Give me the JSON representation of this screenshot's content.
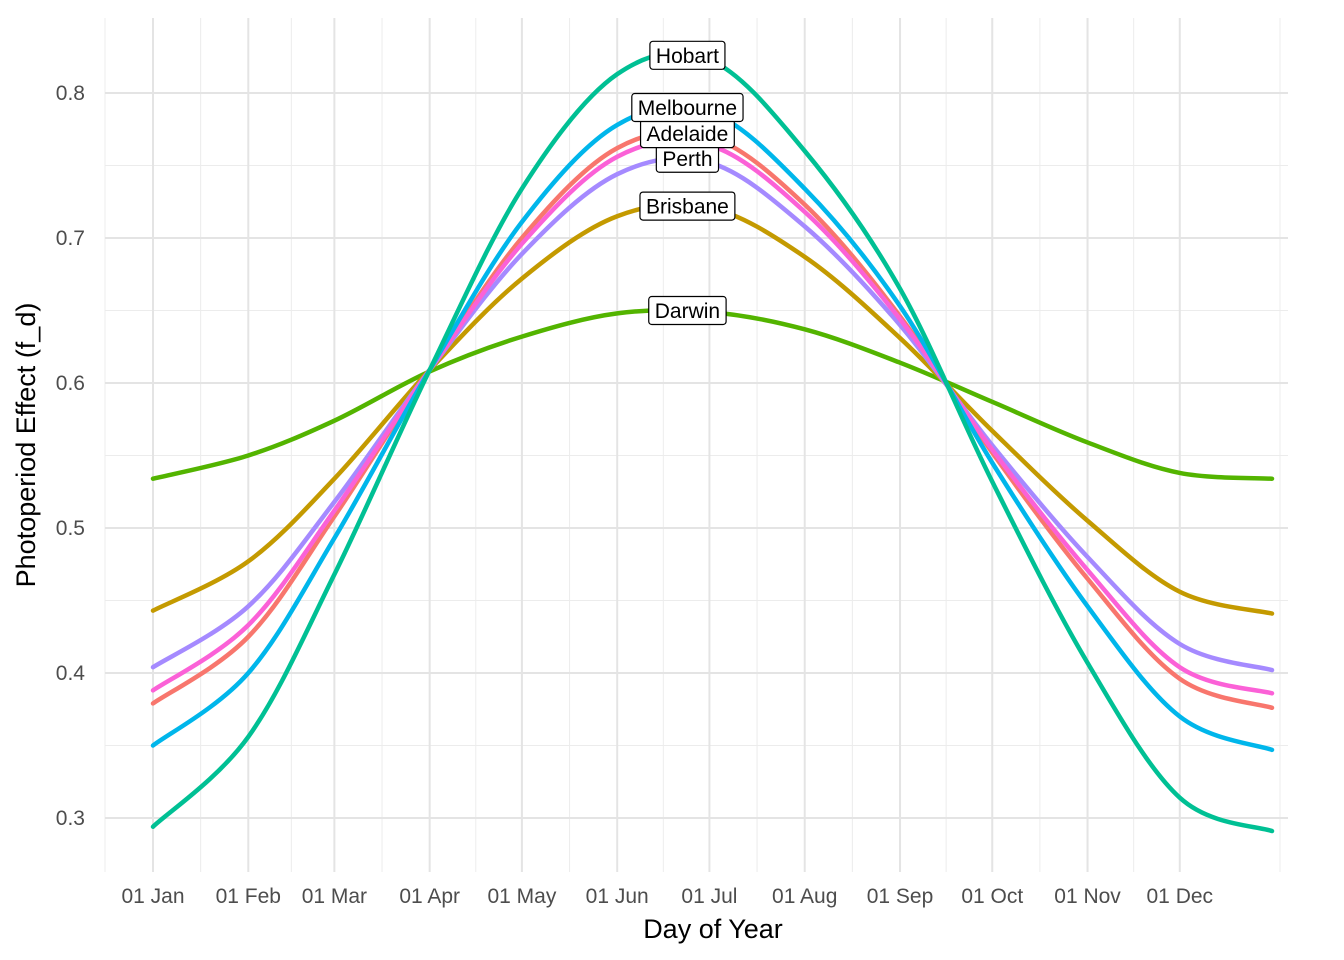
{
  "chart_data": {
    "type": "line",
    "title": "",
    "xlabel": "Day of Year",
    "ylabel": "Photoperiod Effect (f_d)",
    "x_unit": "day of year",
    "xlim": [
      1,
      365
    ],
    "ylim": [
      0.27,
      0.85
    ],
    "grid": true,
    "legend": "none (direct labels)",
    "x_ticks": [
      {
        "day": 1,
        "label": "01 Jan"
      },
      {
        "day": 32,
        "label": "01 Feb"
      },
      {
        "day": 60,
        "label": "01 Mar"
      },
      {
        "day": 91,
        "label": "01 Apr"
      },
      {
        "day": 121,
        "label": "01 May"
      },
      {
        "day": 152,
        "label": "01 Jun"
      },
      {
        "day": 182,
        "label": "01 Jul"
      },
      {
        "day": 213,
        "label": "01 Aug"
      },
      {
        "day": 244,
        "label": "01 Sep"
      },
      {
        "day": 274,
        "label": "01 Oct"
      },
      {
        "day": 305,
        "label": "01 Nov"
      },
      {
        "day": 335,
        "label": "01 Dec"
      }
    ],
    "y_ticks": [
      {
        "value": 0.3,
        "label": "0.3"
      },
      {
        "value": 0.4,
        "label": "0.4"
      },
      {
        "value": 0.5,
        "label": "0.5"
      },
      {
        "value": 0.6,
        "label": "0.6"
      },
      {
        "value": 0.7,
        "label": "0.7"
      },
      {
        "value": 0.8,
        "label": "0.8"
      }
    ],
    "x": [
      1,
      32,
      60,
      91,
      121,
      152,
      182,
      213,
      244,
      274,
      305,
      335,
      365
    ],
    "series": [
      {
        "name": "Darwin",
        "color": "#53B400",
        "label_day": 182,
        "label_value": 0.65,
        "values": [
          0.534,
          0.55,
          0.574,
          0.608,
          0.632,
          0.648,
          0.649,
          0.637,
          0.614,
          0.587,
          0.559,
          0.538,
          0.534
        ]
      },
      {
        "name": "Brisbane",
        "color": "#C49A00",
        "label_day": 182,
        "label_value": 0.722,
        "values": [
          0.443,
          0.477,
          0.534,
          0.609,
          0.672,
          0.715,
          0.721,
          0.687,
          0.631,
          0.567,
          0.505,
          0.456,
          0.441
        ]
      },
      {
        "name": "Perth",
        "color": "#A58AFF",
        "label_day": 182,
        "label_value": 0.755,
        "values": [
          0.404,
          0.446,
          0.518,
          0.609,
          0.689,
          0.744,
          0.752,
          0.708,
          0.64,
          0.557,
          0.48,
          0.42,
          0.402
        ]
      },
      {
        "name": "Adelaide",
        "color": "#F8766D",
        "label_day": 182,
        "label_value": 0.772,
        "values": [
          0.379,
          0.425,
          0.508,
          0.609,
          0.7,
          0.762,
          0.77,
          0.723,
          0.646,
          0.552,
          0.465,
          0.396,
          0.376
        ]
      },
      {
        "name": "",
        "color": "#FB61D7",
        "values": [
          0.388,
          0.433,
          0.512,
          0.609,
          0.696,
          0.756,
          0.764,
          0.718,
          0.644,
          0.554,
          0.471,
          0.404,
          0.386
        ]
      },
      {
        "name": "Melbourne",
        "color": "#00B6EB",
        "label_day": 182,
        "label_value": 0.79,
        "values": [
          0.35,
          0.4,
          0.493,
          0.609,
          0.711,
          0.778,
          0.787,
          0.734,
          0.653,
          0.545,
          0.446,
          0.37,
          0.347
        ]
      },
      {
        "name": "Hobart",
        "color": "#00C094",
        "label_day": 182,
        "label_value": 0.826,
        "values": [
          0.294,
          0.356,
          0.468,
          0.609,
          0.734,
          0.813,
          0.823,
          0.76,
          0.665,
          0.532,
          0.407,
          0.314,
          0.291
        ]
      }
    ]
  }
}
